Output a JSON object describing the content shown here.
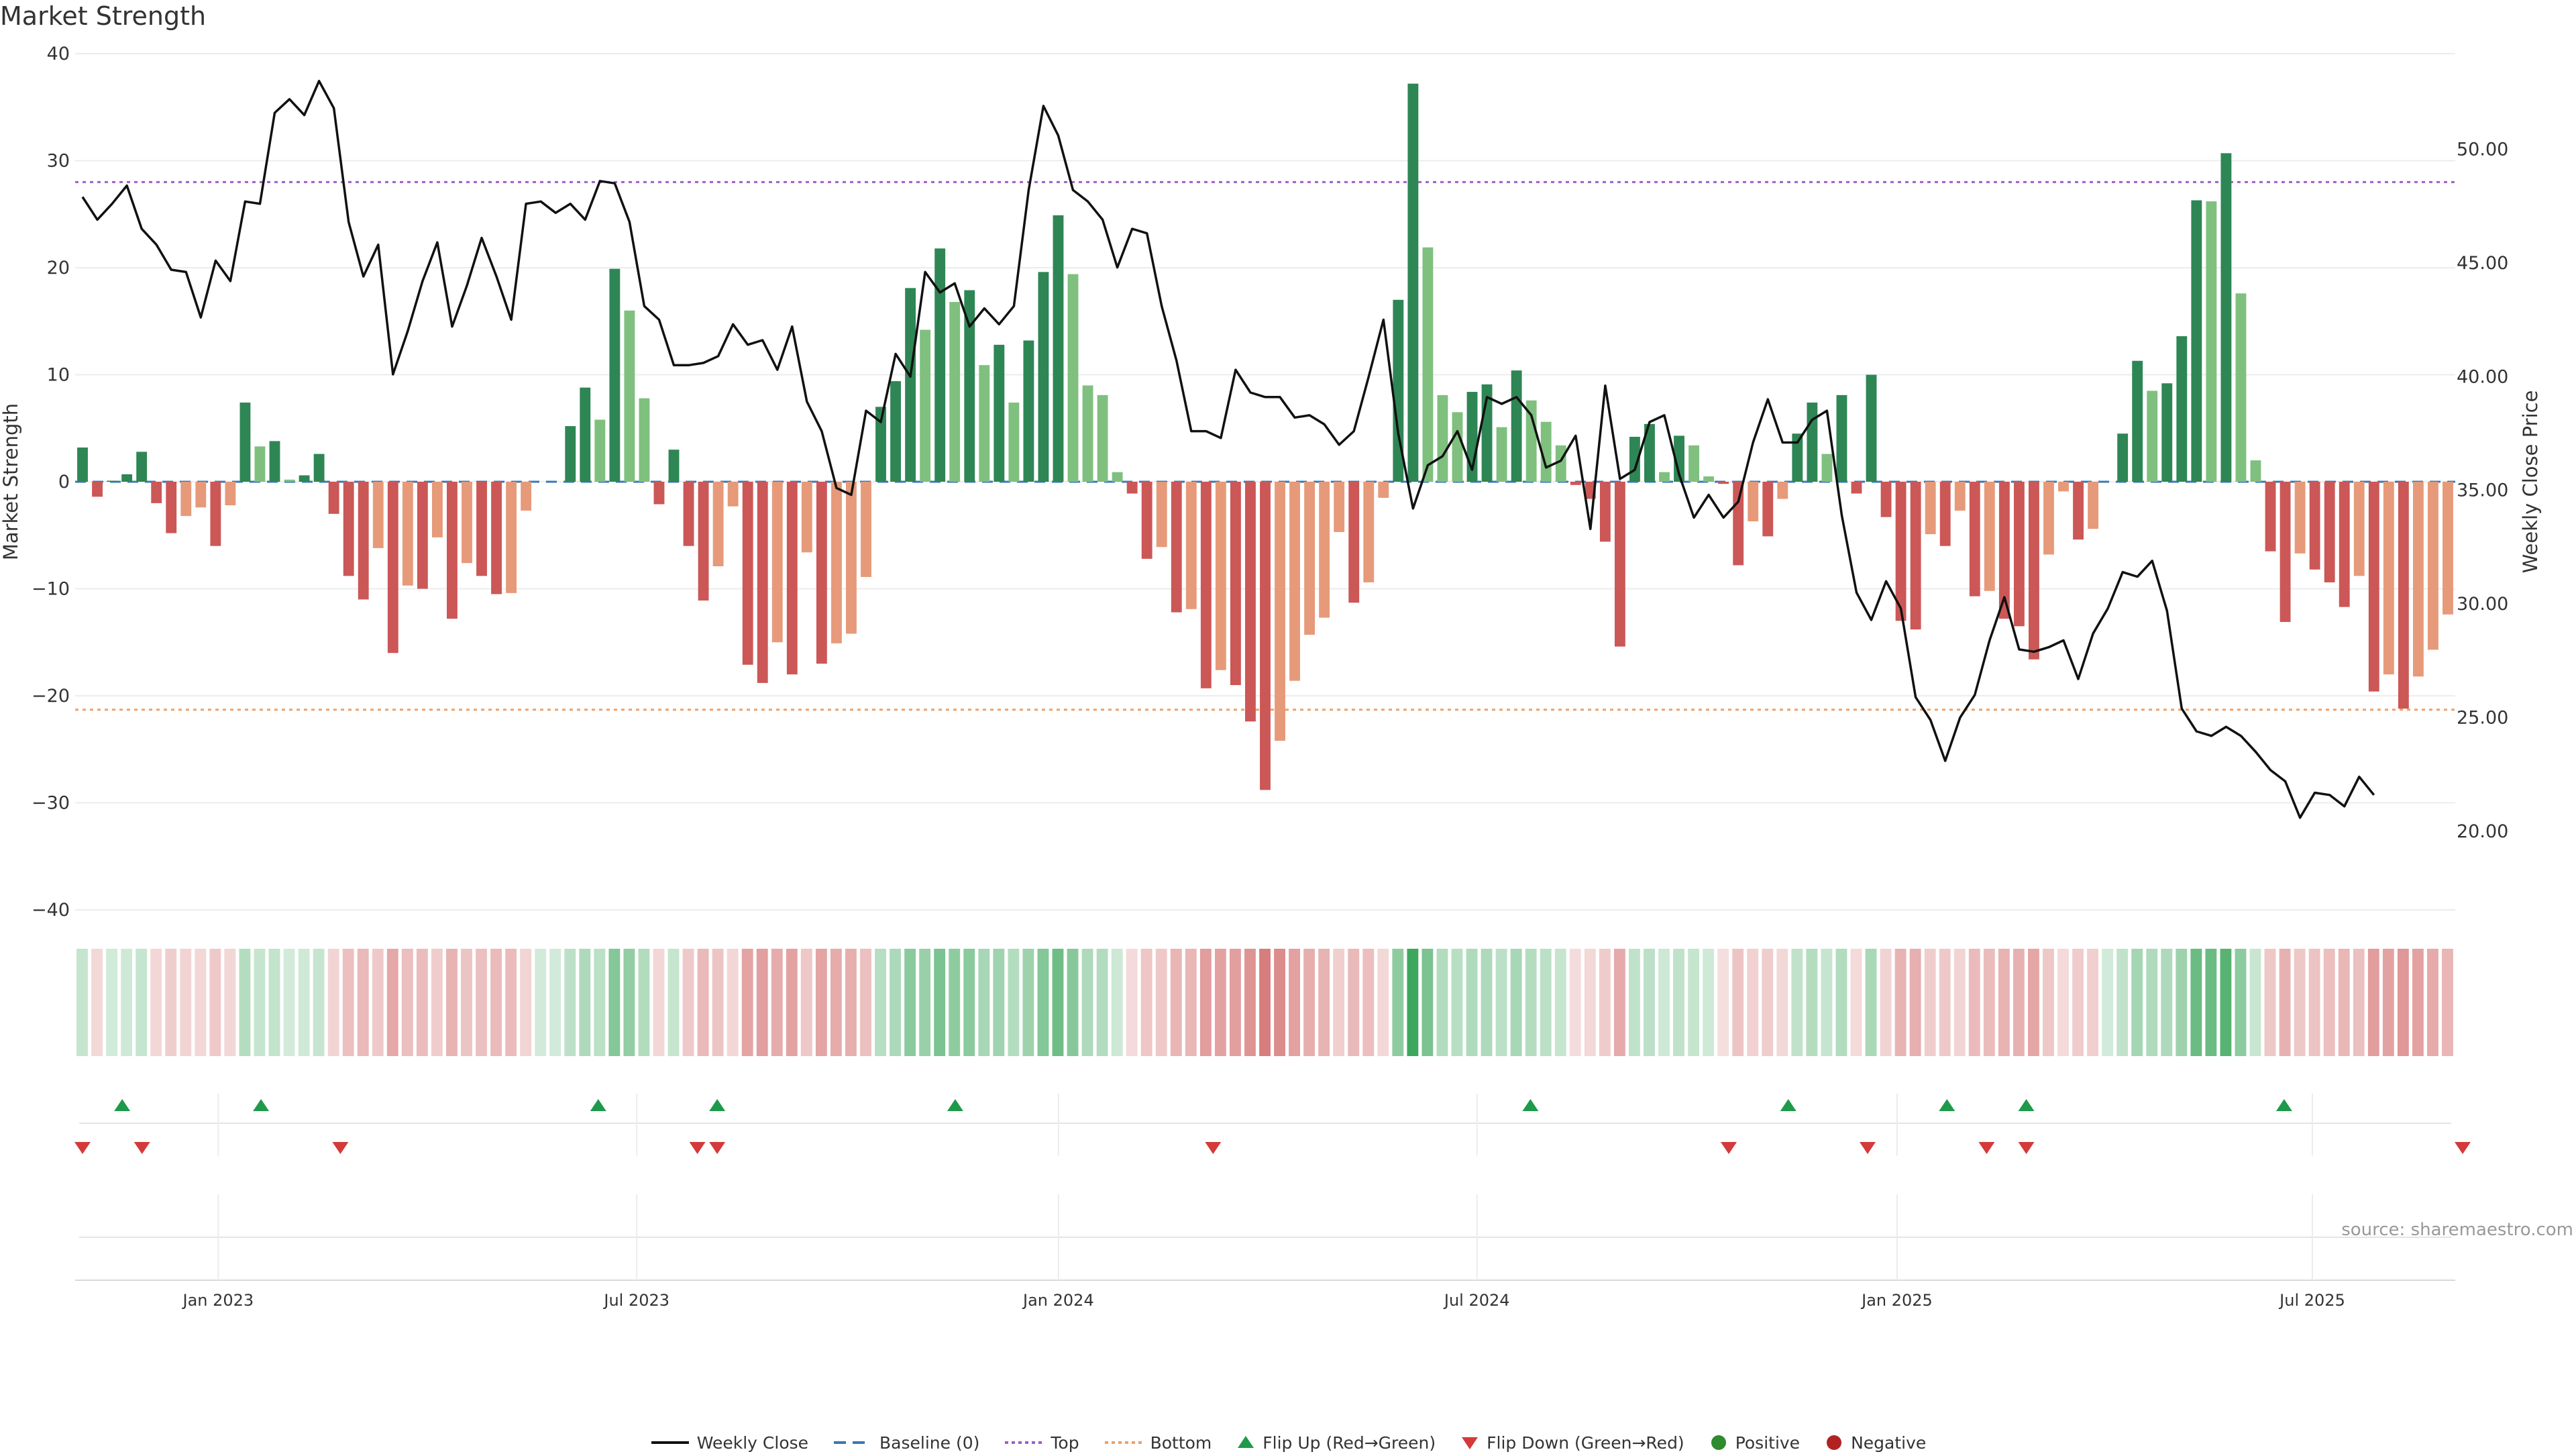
{
  "chart_data": {
    "type": "bar",
    "title": "Market Strength",
    "left_axis_label": "Market Strength",
    "right_axis_label": "Weekly Close Price",
    "left_ylim": [
      -40,
      40
    ],
    "left_ticks": [
      "40",
      "30",
      "20",
      "10",
      "0",
      "−10",
      "−20",
      "−30",
      "−40"
    ],
    "left_tick_values": [
      40,
      30,
      20,
      10,
      0,
      -10,
      -20,
      -30,
      -40
    ],
    "right_ylim": [
      16.55,
      54.2
    ],
    "right_ticks": [
      "50.00",
      "45.00",
      "40.00",
      "35.00",
      "30.00",
      "25.00",
      "20.00"
    ],
    "right_tick_values": [
      50,
      45,
      40,
      35,
      30,
      25,
      20
    ],
    "x_tick_labels": [
      "Jan 2023",
      "Jul 2023",
      "Jan 2024",
      "Jul 2024",
      "Jan 2025",
      "Jul 2025"
    ],
    "x_tick_weeks": [
      8.4,
      34.3,
      60.4,
      86.3,
      112.3,
      138.0
    ],
    "top_threshold": 28,
    "bottom_threshold": -21.3,
    "grid": true,
    "strength": [
      3.2,
      -1.4,
      0.1,
      0.7,
      2.8,
      -2.0,
      -4.8,
      -3.2,
      -2.4,
      -6.0,
      -2.2,
      7.4,
      3.3,
      3.8,
      0.2,
      0.6,
      2.6,
      -3.0,
      -8.8,
      -11.0,
      -6.2,
      -16.0,
      -9.7,
      -10.0,
      -5.2,
      -12.8,
      -7.6,
      -8.8,
      -10.5,
      -10.4,
      -2.7,
      0.0,
      0.0,
      5.2,
      8.8,
      5.8,
      19.9,
      16.0,
      7.8,
      -2.1,
      3.0,
      -6.0,
      -11.1,
      -7.9,
      -2.3,
      -17.1,
      -18.8,
      -15.0,
      -18.0,
      -6.6,
      -17.0,
      -15.1,
      -14.2,
      -8.9,
      7.0,
      9.4,
      18.1,
      14.2,
      21.8,
      16.8,
      17.9,
      10.9,
      12.8,
      7.4,
      13.2,
      19.6,
      24.9,
      19.4,
      9.0,
      8.1,
      0.9,
      -1.1,
      -7.2,
      -6.1,
      -12.2,
      -11.9,
      -19.3,
      -17.6,
      -19.0,
      -22.4,
      -28.8,
      -24.2,
      -18.6,
      -14.3,
      -12.7,
      -4.7,
      -11.3,
      -9.4,
      -1.5,
      17.0,
      37.2,
      21.9,
      8.1,
      6.5,
      8.4,
      9.1,
      5.1,
      10.4,
      7.6,
      5.6,
      3.4,
      -0.3,
      -1.6,
      -5.6,
      -15.4,
      4.2,
      5.4,
      0.9,
      4.3,
      3.4,
      0.5,
      -0.2,
      -7.8,
      -3.7,
      -5.1,
      -1.6,
      4.5,
      7.4,
      2.6,
      8.1,
      -1.1,
      10.0,
      -3.3,
      -13.0,
      -13.8,
      -4.9,
      -6.0,
      -2.7,
      -10.7,
      -10.2,
      -12.8,
      -13.5,
      -16.6,
      -6.8,
      -0.9,
      -5.4,
      -4.4,
      0.0,
      4.5,
      11.3,
      8.5,
      9.2,
      13.6,
      26.3,
      26.2,
      30.7,
      17.6,
      2.0,
      -6.5,
      -13.1,
      -6.7,
      -8.2,
      -9.4,
      -11.7,
      -8.8,
      -19.6,
      -18.0,
      -21.2,
      -18.2,
      -15.7,
      -12.4
    ],
    "close": [
      47.9,
      46.9,
      47.6,
      48.4,
      46.5,
      45.8,
      44.7,
      44.6,
      42.6,
      45.1,
      44.2,
      47.7,
      47.6,
      51.6,
      52.2,
      51.5,
      53.0,
      51.8,
      46.8,
      44.4,
      45.8,
      40.1,
      42.0,
      44.2,
      45.9,
      42.2,
      44.0,
      46.1,
      44.4,
      42.5,
      47.6,
      47.7,
      47.2,
      47.6,
      46.9,
      48.6,
      48.5,
      46.8,
      43.1,
      42.5,
      40.5,
      40.5,
      40.6,
      40.9,
      42.3,
      41.4,
      41.6,
      40.3,
      42.2,
      38.9,
      37.6,
      35.1,
      34.8,
      38.5,
      38.0,
      41.0,
      40.0,
      44.6,
      43.7,
      44.1,
      42.2,
      43.0,
      42.3,
      43.1,
      48.2,
      51.9,
      50.6,
      48.2,
      47.7,
      46.9,
      44.8,
      46.5,
      46.3,
      43.1,
      40.7,
      37.6,
      37.6,
      37.3,
      40.3,
      39.3,
      39.1,
      39.1,
      38.2,
      38.3,
      37.9,
      37.0,
      37.6,
      40.0,
      42.5,
      37.5,
      34.2,
      36.1,
      36.5,
      37.6,
      35.9,
      39.1,
      38.8,
      39.1,
      38.3,
      36.0,
      36.3,
      37.4,
      33.3,
      39.6,
      35.5,
      35.9,
      38.0,
      38.3,
      35.7,
      33.8,
      34.8,
      33.8,
      34.5,
      37.1,
      39.0,
      37.1,
      37.1,
      38.1,
      38.5,
      33.9,
      30.5,
      29.3,
      31.0,
      29.8,
      25.9,
      24.9,
      23.1,
      25.0,
      26.0,
      28.4,
      30.3,
      28.0,
      27.9,
      28.1,
      28.4,
      26.7,
      28.7,
      29.8,
      31.4,
      31.2,
      31.9,
      29.7,
      25.4,
      24.4,
      24.2,
      24.6,
      24.2,
      23.5,
      22.7,
      22.2,
      20.6,
      21.7,
      21.6,
      21.1,
      22.4,
      21.6
    ],
    "flip_up_weeks": [
      2,
      9,
      26,
      32,
      44,
      73,
      86,
      94,
      98,
      111
    ],
    "flip_down_weeks": [
      0,
      3,
      13,
      31,
      32,
      57,
      83,
      90,
      96,
      98,
      120
    ],
    "series": [
      {
        "name": "Weekly Close",
        "color": "#111111"
      },
      {
        "name": "Baseline (0)",
        "color": "#3a78b5"
      },
      {
        "name": "Top",
        "color": "#a05ec8"
      },
      {
        "name": "Bottom",
        "color": "#f0a064"
      },
      {
        "name": "Flip Up (Red→Green)",
        "color": "#1e9a4a"
      },
      {
        "name": "Flip Down (Green→Red)",
        "color": "#d43a3a"
      },
      {
        "name": "Positive",
        "color": "#2e8b2e"
      },
      {
        "name": "Negative",
        "color": "#b22222"
      }
    ]
  },
  "source_text": "source: sharemaestro.com",
  "colors": {
    "pos_strong": "#2e8655",
    "pos_light": "#7fc07f",
    "neg_strong": "#cc5757",
    "neg_light": "#e69a7a"
  }
}
